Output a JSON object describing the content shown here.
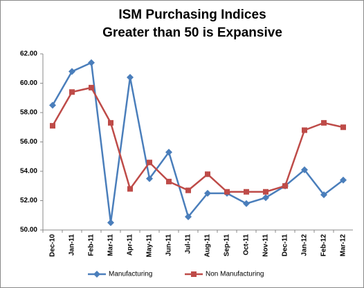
{
  "chart_data": {
    "type": "line",
    "title": "ISM Purchasing Indices",
    "subtitle": "Greater than 50 is Expansive",
    "categories": [
      "Dec-10",
      "Jan-11",
      "Feb-11",
      "Mar-11",
      "Apr-11",
      "May-11",
      "Jun-11",
      "Jul-11",
      "Aug-11",
      "Sep-11",
      "Oct-11",
      "Nov-11",
      "Dec-11",
      "Jan-12",
      "Feb-12",
      "Mar-12"
    ],
    "series": [
      {
        "name": "Manufacturing",
        "color": "#4a7ebb",
        "marker": "diamond",
        "values": [
          58.5,
          60.8,
          61.4,
          50.5,
          60.4,
          53.5,
          55.3,
          50.9,
          52.5,
          52.5,
          51.8,
          52.2,
          53.0,
          54.1,
          52.4,
          53.4
        ]
      },
      {
        "name": "Non Manufacturing",
        "color": "#be4b48",
        "marker": "square",
        "values": [
          57.1,
          59.4,
          59.7,
          57.3,
          52.8,
          54.6,
          53.3,
          52.7,
          53.8,
          52.6,
          52.6,
          52.6,
          53.0,
          56.8,
          57.3,
          57.0
        ]
      }
    ],
    "ylim": [
      50,
      62
    ],
    "yticks": [
      {
        "value": 50,
        "label": "50.00"
      },
      {
        "value": 52,
        "label": "52.00"
      },
      {
        "value": 54,
        "label": "54.00"
      },
      {
        "value": 56,
        "label": "56.00"
      },
      {
        "value": 58,
        "label": "58.00"
      },
      {
        "value": 60,
        "label": "60.00"
      },
      {
        "value": 62,
        "label": "62.00"
      }
    ],
    "grid": false,
    "legend": "bottom"
  }
}
